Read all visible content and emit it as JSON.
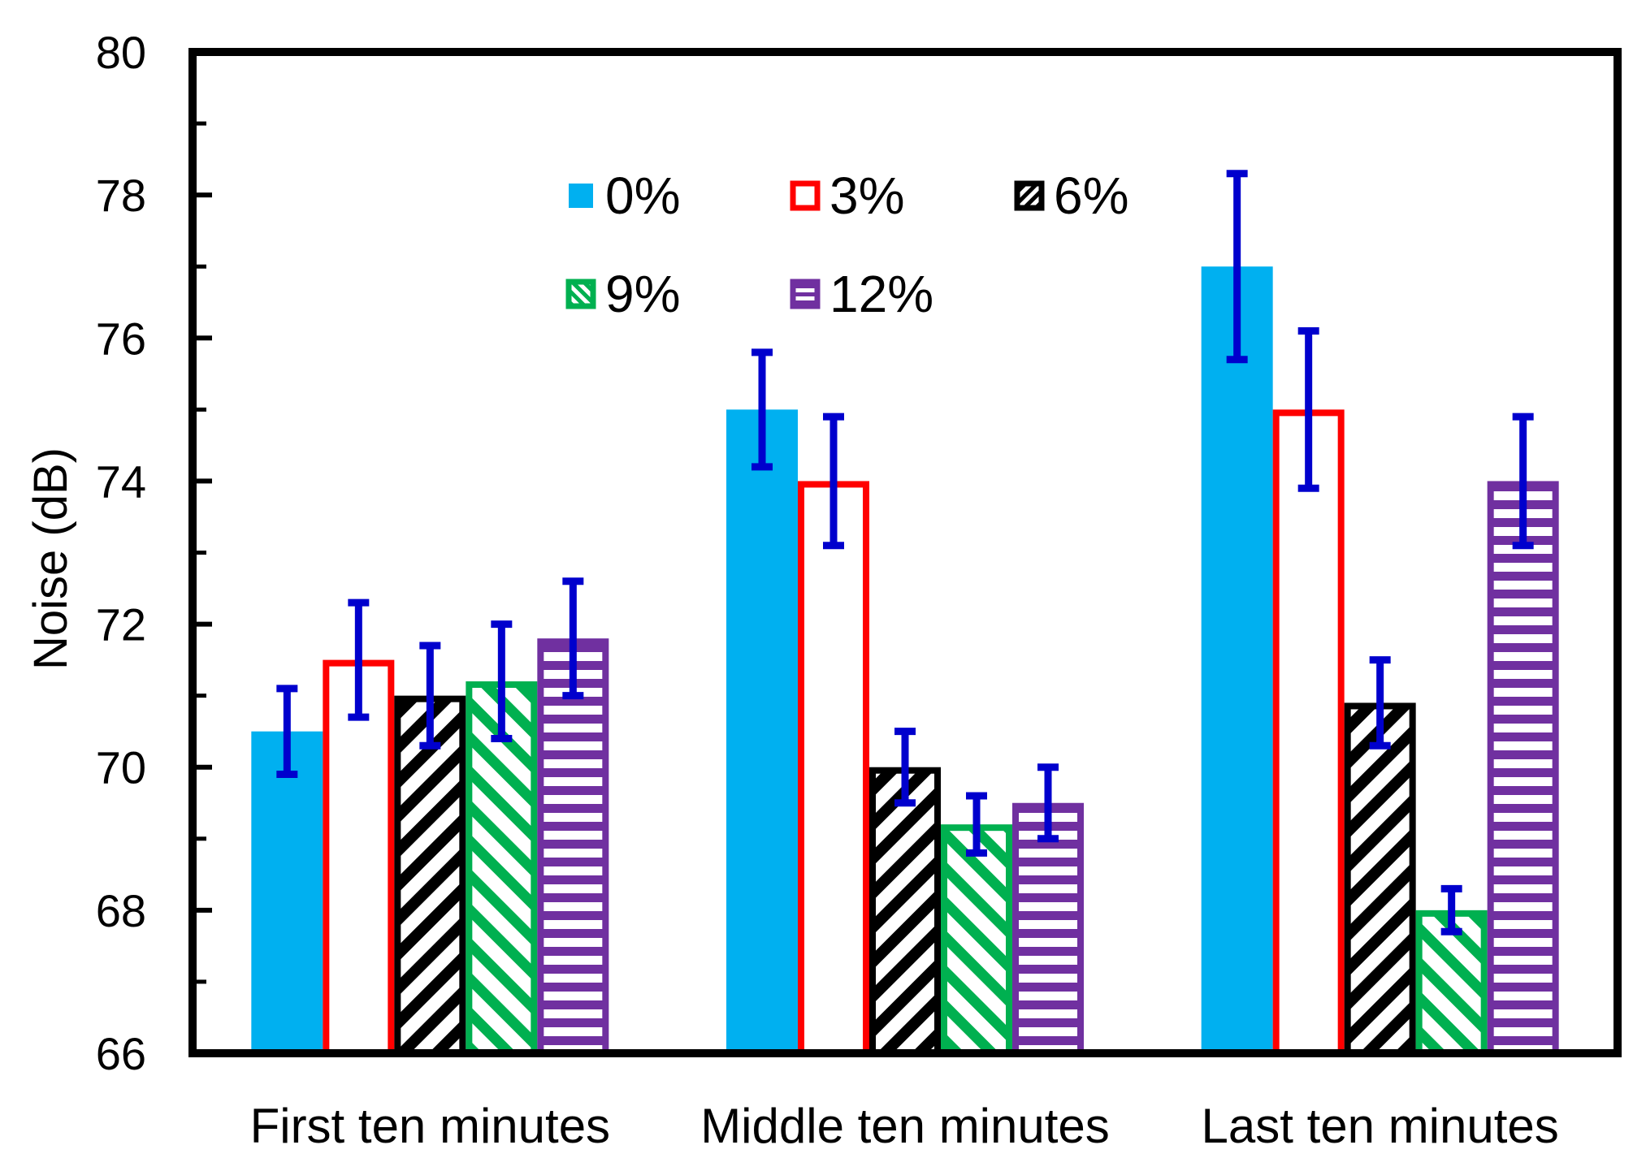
{
  "chart_data": {
    "type": "bar",
    "title": "",
    "xlabel": "",
    "ylabel": "Noise (dB)",
    "ylim": [
      66,
      80
    ],
    "yticks": [
      66,
      68,
      70,
      72,
      74,
      76,
      78,
      80
    ],
    "categories": [
      "First ten minutes",
      "Middle ten minutes",
      "Last ten minutes"
    ],
    "series": [
      {
        "name": "0%",
        "color": "#00b0f0",
        "pattern": "solid",
        "values": [
          70.5,
          75.0,
          77.0
        ],
        "errors": [
          0.6,
          0.8,
          1.3
        ]
      },
      {
        "name": "3%",
        "color": "#ff0000",
        "pattern": "hollow",
        "values": [
          71.5,
          74.0,
          75.0
        ],
        "errors": [
          0.8,
          0.9,
          1.1
        ]
      },
      {
        "name": "6%",
        "color": "#000000",
        "pattern": "diag-up",
        "values": [
          71.0,
          70.0,
          70.9
        ],
        "errors": [
          0.7,
          0.5,
          0.6
        ]
      },
      {
        "name": "9%",
        "color": "#00b050",
        "pattern": "diag-down",
        "values": [
          71.2,
          69.2,
          68.0
        ],
        "errors": [
          0.8,
          0.4,
          0.3
        ]
      },
      {
        "name": "12%",
        "color": "#7030a0",
        "pattern": "horizontal",
        "values": [
          71.8,
          69.5,
          74.0
        ],
        "errors": [
          0.8,
          0.5,
          0.9
        ]
      }
    ],
    "error_bar_color": "#0000cd",
    "legend": {
      "placement": "top-center",
      "columns": 3
    }
  }
}
